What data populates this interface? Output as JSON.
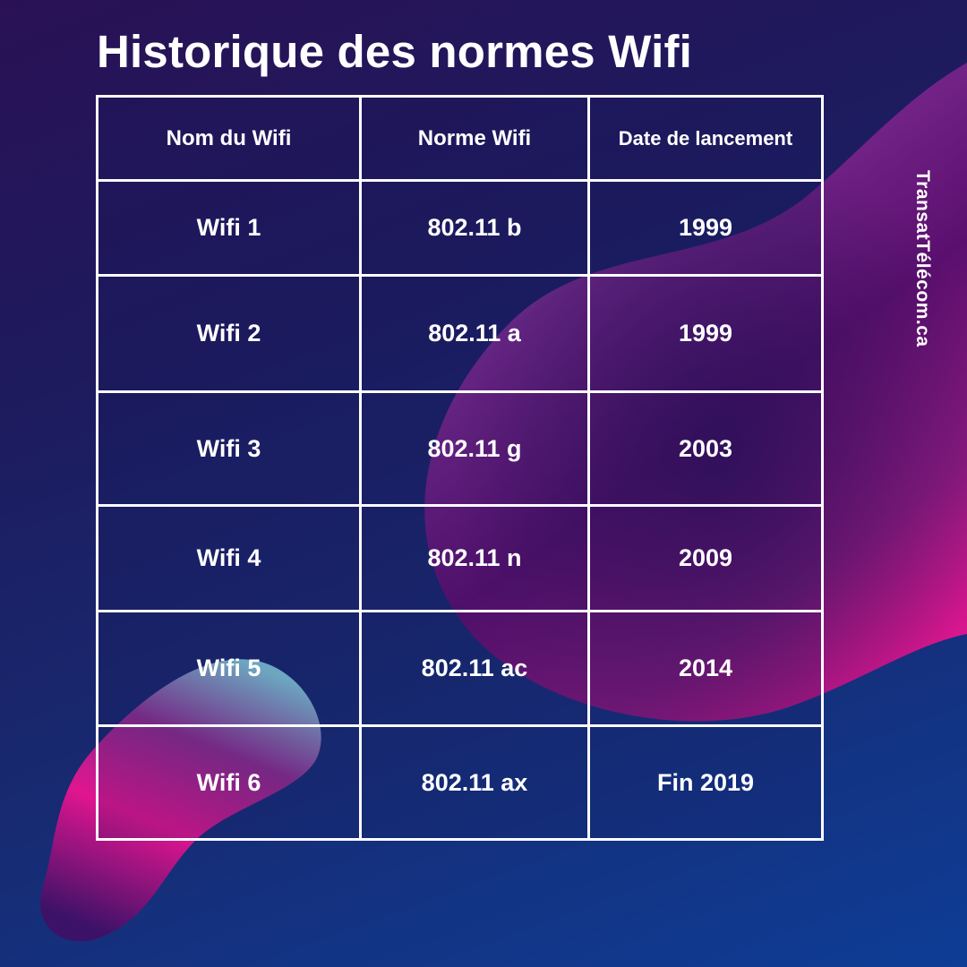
{
  "title": "Historique des normes Wifi",
  "brand": "TransatTélécom.ca",
  "table": {
    "headers": [
      "Nom du Wifi",
      "Norme Wifi",
      "Date de lancement"
    ],
    "rows": [
      [
        "Wifi 1",
        "802.11 b",
        "1999"
      ],
      [
        "Wifi 2",
        "802.11 a",
        "1999"
      ],
      [
        "Wifi 3",
        "802.11 g",
        "2003"
      ],
      [
        "Wifi 4",
        "802.11 n",
        "2009"
      ],
      [
        "Wifi 5",
        "802.11 ac",
        "2014"
      ],
      [
        "Wifi 6",
        "802.11 ax",
        "Fin 2019"
      ]
    ]
  },
  "colors": {
    "background_top": "#2a1155",
    "background_bottom": "#0e3d96",
    "blob_magenta": "#e0158f",
    "blob_purple": "#5a0f6e",
    "blob_cyan": "#66d4e0",
    "text": "#ffffff"
  }
}
